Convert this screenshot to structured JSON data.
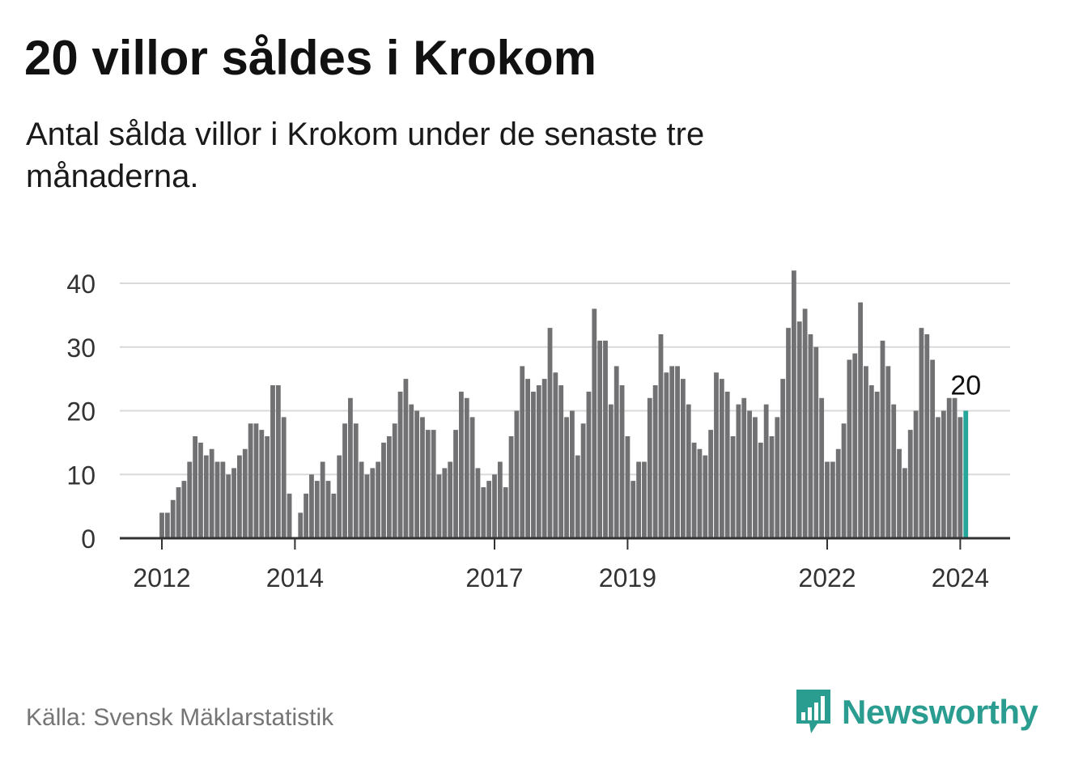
{
  "header": {
    "title": "20 villor såldes i Krokom",
    "subtitle": "Antal sålda villor i Krokom under de senaste tre månaderna."
  },
  "footer": {
    "source": "Källa: Svensk Mäklarstatistik",
    "brand": "Newsworthy",
    "brand_icon": "bar-chart-logo-icon"
  },
  "colors": {
    "bar": "#717073",
    "highlight": "#26a69a",
    "grid": "#d9d9d9",
    "axis": "#333333",
    "brand": "#2a9d90"
  },
  "chart_data": {
    "type": "bar",
    "title": "20 villor såldes i Krokom",
    "xlabel": "",
    "ylabel": "",
    "ylim": [
      0,
      42
    ],
    "yticks": [
      0,
      10,
      20,
      30,
      40
    ],
    "grid": true,
    "x_start": "2012-01",
    "xticks": [
      {
        "label": "2012",
        "index": 0
      },
      {
        "label": "2014",
        "index": 24
      },
      {
        "label": "2017",
        "index": 60
      },
      {
        "label": "2019",
        "index": 84
      },
      {
        "label": "2022",
        "index": 120
      },
      {
        "label": "2024",
        "index": 144
      }
    ],
    "values": [
      4,
      4,
      6,
      8,
      9,
      12,
      16,
      15,
      13,
      14,
      12,
      12,
      10,
      11,
      13,
      14,
      18,
      18,
      17,
      16,
      24,
      24,
      19,
      7,
      0,
      4,
      7,
      10,
      9,
      12,
      9,
      7,
      13,
      18,
      22,
      18,
      12,
      10,
      11,
      12,
      15,
      16,
      18,
      23,
      25,
      21,
      20,
      19,
      17,
      17,
      10,
      11,
      12,
      17,
      23,
      22,
      19,
      11,
      8,
      9,
      10,
      12,
      8,
      16,
      20,
      27,
      25,
      23,
      24,
      25,
      33,
      26,
      24,
      19,
      20,
      13,
      18,
      23,
      36,
      31,
      31,
      21,
      27,
      24,
      16,
      9,
      12,
      12,
      22,
      24,
      32,
      26,
      27,
      27,
      25,
      21,
      15,
      14,
      13,
      17,
      26,
      25,
      23,
      16,
      21,
      22,
      20,
      19,
      15,
      21,
      16,
      19,
      25,
      33,
      42,
      34,
      36,
      32,
      30,
      22,
      12,
      12,
      14,
      18,
      28,
      29,
      37,
      27,
      24,
      23,
      31,
      27,
      21,
      14,
      11,
      17,
      20,
      33,
      32,
      28,
      19,
      20,
      22,
      22,
      19,
      20
    ],
    "highlight_index": 145,
    "highlight_label": "20"
  }
}
